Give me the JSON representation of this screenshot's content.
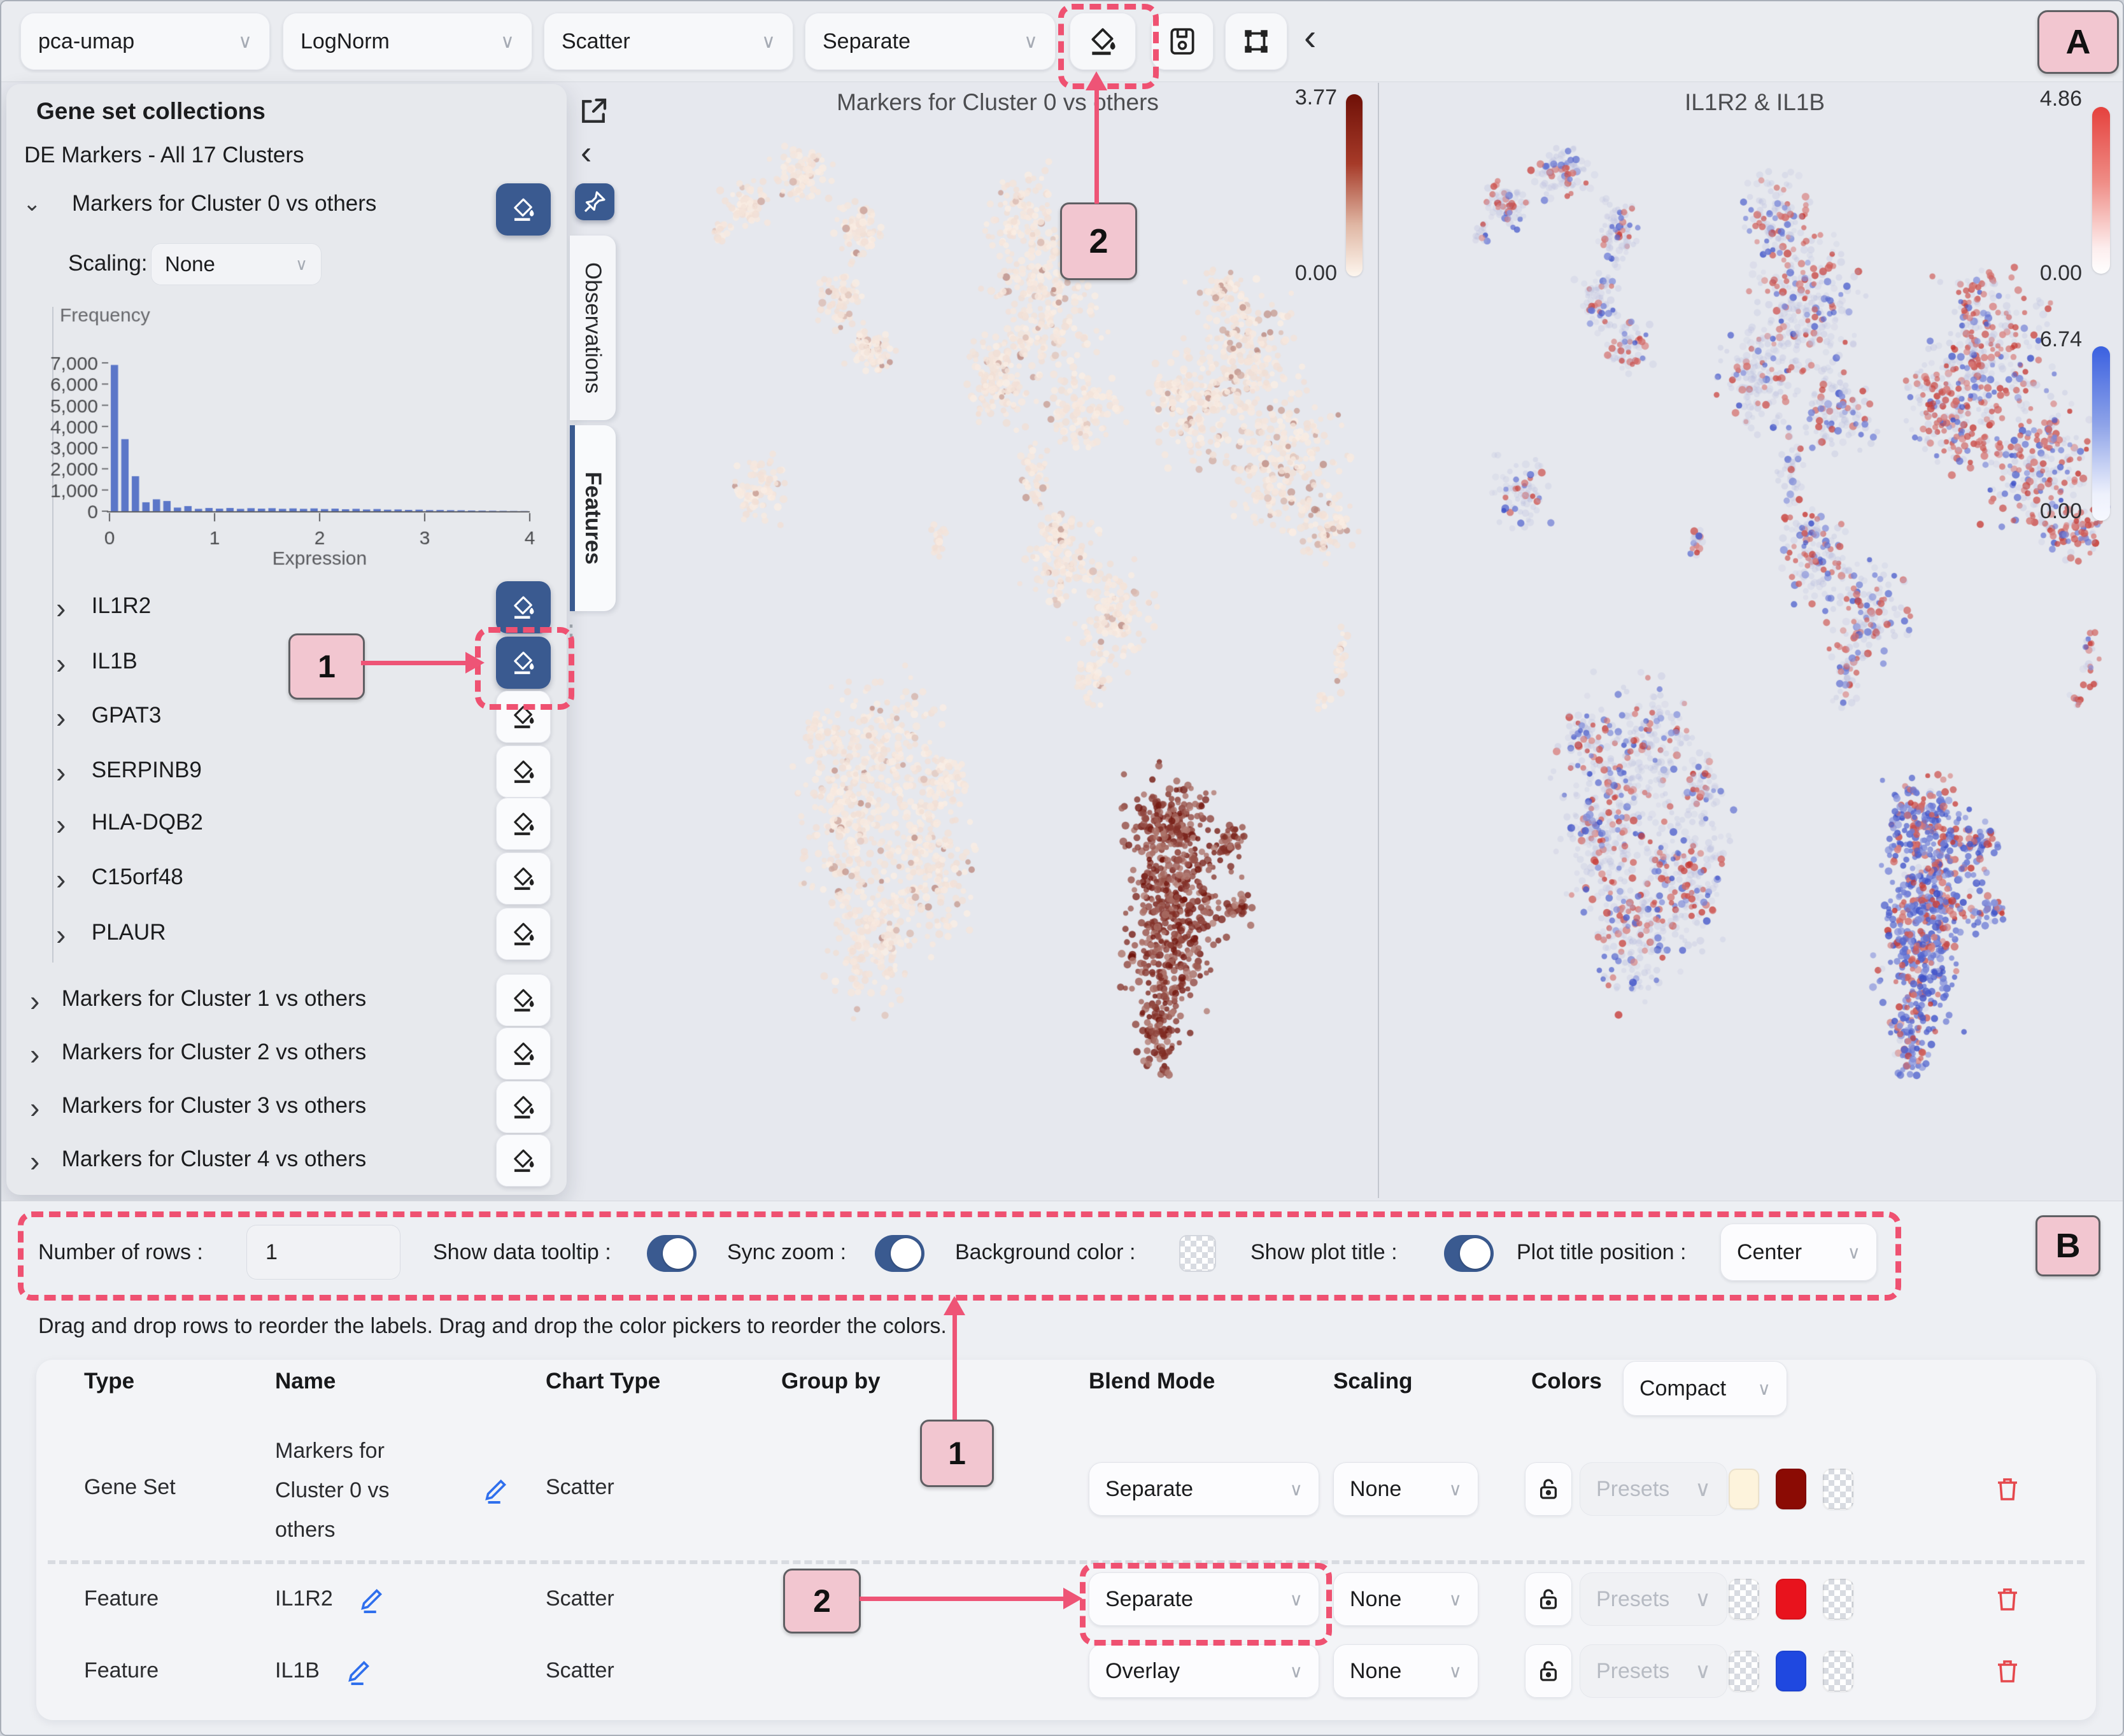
{
  "colors": {
    "accent_blue": "#3a5a90",
    "annotation_pink": "#ef5171",
    "annotation_badge_bg": "#f2c6d0",
    "histogram_bar": "#5b76c8",
    "heat_max": "#7a130a",
    "feature_red": "#e8131d",
    "feature_blue": "#1f48e0",
    "gene_set_low": "#fdf3dc",
    "gene_set_high": "#8b0b04",
    "trash_red": "#e5484d",
    "edit_blue": "#2f6fed"
  },
  "icons": {
    "paint": "paint-bucket",
    "save": "save-floppy",
    "frame": "transform-frame",
    "collapse": "chevron-left",
    "external": "external-link",
    "pin": "pin",
    "lock": "lock",
    "trash": "trash",
    "edit": "pencil",
    "chevron_down": "∨",
    "chevron_right": "›",
    "collapse_glyph": "‹",
    "drag_dots": "⋮"
  },
  "annotations": {
    "a": "A",
    "b": "B",
    "one": "1",
    "two": "2"
  },
  "toolbar": {
    "embedding": "pca-umap",
    "layer": "LogNorm",
    "chart_type": "Scatter",
    "blend_mode": "Separate"
  },
  "gene_panel": {
    "title": "Gene set collections",
    "collection": "DE Markers - All 17 Clusters",
    "expanded_set": "Markers for Cluster 0 vs others",
    "scaling_label": "Scaling:",
    "scaling_value": "None",
    "genes": [
      {
        "name": "IL1R2",
        "active": true
      },
      {
        "name": "IL1B",
        "active": true
      },
      {
        "name": "GPAT3",
        "active": false
      },
      {
        "name": "SERPINB9",
        "active": false
      },
      {
        "name": "HLA-DQB2",
        "active": false
      },
      {
        "name": "C15orf48",
        "active": false
      },
      {
        "name": "PLAUR",
        "active": false
      }
    ],
    "other_sets": [
      "Markers for Cluster 1 vs others",
      "Markers for Cluster 2 vs others",
      "Markers for Cluster 3 vs others",
      "Markers for Cluster 4 vs others"
    ]
  },
  "tabs": {
    "observations": "Observations",
    "features": "Features"
  },
  "controls": {
    "number_of_rows_label": "Number of rows :",
    "number_of_rows_value": "1",
    "show_data_tooltip_label": "Show data tooltip :",
    "sync_zoom_label": "Sync zoom :",
    "background_color_label": "Background color :",
    "show_plot_title_label": "Show plot title :",
    "plot_title_position_label": "Plot title position :",
    "plot_title_position_value": "Center",
    "show_data_tooltip_on": true,
    "sync_zoom_on": true,
    "show_plot_title_on": true
  },
  "hint": "Drag and drop rows to reorder the labels. Drag and drop the color pickers to reorder the colors.",
  "table": {
    "headers": [
      "Type",
      "Name",
      "Chart Type",
      "Group by",
      "Blend Mode",
      "Scaling",
      "Colors"
    ],
    "colors_mode": "Compact",
    "presets_label": "Presets",
    "rows": [
      {
        "type": "Gene Set",
        "name": "Markers for Cluster 0 vs others",
        "chart": "Scatter",
        "group_by": "",
        "blend": "Separate",
        "scaling": "None",
        "swatches": [
          "#fdf3dc",
          "#8b0b04",
          "transparent"
        ]
      },
      {
        "type": "Feature",
        "name": "IL1R2",
        "chart": "Scatter",
        "group_by": "",
        "blend": "Separate",
        "scaling": "None",
        "swatches": [
          "transparent",
          "#e8131d",
          "transparent"
        ]
      },
      {
        "type": "Feature",
        "name": "IL1B",
        "chart": "Scatter",
        "group_by": "",
        "blend": "Overlay",
        "scaling": "None",
        "swatches": [
          "transparent",
          "#1f48e0",
          "transparent"
        ]
      }
    ]
  },
  "chart_data": [
    {
      "type": "bar",
      "title": "Frequency",
      "xlabel": "Expression",
      "ylabel": "Frequency",
      "x_ticks": [
        0,
        1,
        2,
        3,
        4
      ],
      "y_ticks": [
        "0",
        "1,000",
        "2,000",
        "3,000",
        "4,000",
        "5,000",
        "6,000",
        "7,000"
      ],
      "xlim": [
        0,
        4
      ],
      "ylim": [
        0,
        7000
      ],
      "bar_color": "#5b76c8",
      "values": [
        6900,
        3400,
        1650,
        420,
        560,
        480,
        170,
        240,
        110,
        150,
        120,
        150,
        110,
        140,
        120,
        140,
        110,
        130,
        110,
        130,
        100,
        120,
        90,
        110,
        80,
        100,
        70,
        80,
        60,
        70,
        50,
        55,
        45,
        40,
        30,
        25,
        20,
        15,
        10,
        8
      ]
    },
    {
      "type": "scatter",
      "title": "Markers for Cluster 0 vs others",
      "scheme": "heat",
      "legend_position": "right",
      "colorbars": [
        {
          "max": "3.77",
          "min": "0.00",
          "color": "red"
        }
      ]
    },
    {
      "type": "scatter",
      "title": "IL1R2 & IL1B",
      "scheme": "dual",
      "legend_position": "right",
      "colorbars": [
        {
          "max": "4.86",
          "min": "0.00",
          "color": "red"
        },
        {
          "max": "6.74",
          "min": "0.00",
          "color": "blue"
        }
      ]
    }
  ],
  "umap_clusters": [
    {
      "name": "crescent",
      "heat": 0.05,
      "red": 0.18,
      "blue": 0.13,
      "blobs": [
        [
          0.165,
          0.075,
          0.02,
          0.015,
          70
        ],
        [
          0.24,
          0.045,
          0.026,
          0.016,
          90
        ],
        [
          0.315,
          0.1,
          0.018,
          0.022,
          80
        ],
        [
          0.29,
          0.165,
          0.02,
          0.02,
          70
        ],
        [
          0.33,
          0.21,
          0.022,
          0.016,
          70
        ],
        [
          0.13,
          0.1,
          0.008,
          0.008,
          16
        ]
      ]
    },
    {
      "name": "top-middle",
      "heat": 0.04,
      "red": 0.16,
      "blue": 0.12,
      "blobs": [
        [
          0.53,
          0.09,
          0.03,
          0.035,
          120
        ],
        [
          0.565,
          0.175,
          0.048,
          0.055,
          280
        ],
        [
          0.5,
          0.24,
          0.03,
          0.03,
          130
        ],
        [
          0.615,
          0.27,
          0.032,
          0.026,
          110
        ],
        [
          0.55,
          0.33,
          0.013,
          0.028,
          45
        ]
      ]
    },
    {
      "name": "right-lobe",
      "heat": 0.1,
      "red": 0.42,
      "blue": 0.16,
      "blobs": [
        [
          0.82,
          0.21,
          0.05,
          0.045,
          220
        ],
        [
          0.77,
          0.27,
          0.042,
          0.038,
          150
        ],
        [
          0.88,
          0.32,
          0.05,
          0.048,
          240
        ],
        [
          0.935,
          0.38,
          0.028,
          0.02,
          70
        ],
        [
          0.73,
          0.25,
          0.02,
          0.016,
          40
        ],
        [
          0.8,
          0.155,
          0.02,
          0.015,
          40
        ]
      ]
    },
    {
      "name": "small-left",
      "heat": 0.04,
      "red": 0.15,
      "blue": 0.12,
      "blobs": [
        [
          0.185,
          0.345,
          0.026,
          0.022,
          80
        ]
      ]
    },
    {
      "name": "tiny-mid",
      "heat": 0.05,
      "red": 0.2,
      "blue": 0.2,
      "blobs": [
        [
          0.42,
          0.39,
          0.008,
          0.012,
          18
        ]
      ]
    },
    {
      "name": "middle",
      "heat": 0.05,
      "red": 0.28,
      "blue": 0.14,
      "blobs": [
        [
          0.585,
          0.41,
          0.034,
          0.026,
          120
        ],
        [
          0.655,
          0.46,
          0.036,
          0.032,
          140
        ],
        [
          0.625,
          0.515,
          0.013,
          0.024,
          45
        ],
        [
          0.575,
          0.375,
          0.015,
          0.011,
          28
        ]
      ]
    },
    {
      "name": "bottom-left",
      "heat": 0.04,
      "red": 0.2,
      "blue": 0.16,
      "blobs": [
        [
          0.345,
          0.585,
          0.05,
          0.042,
          220
        ],
        [
          0.3,
          0.66,
          0.046,
          0.052,
          240
        ],
        [
          0.405,
          0.7,
          0.042,
          0.052,
          220
        ],
        [
          0.335,
          0.765,
          0.04,
          0.042,
          170
        ],
        [
          0.43,
          0.62,
          0.02,
          0.02,
          60
        ],
        [
          0.27,
          0.575,
          0.02,
          0.02,
          50
        ]
      ]
    },
    {
      "name": "bottom-right-hot",
      "heat": 0.85,
      "red": 0.3,
      "blue": 0.66,
      "blobs": [
        [
          0.73,
          0.655,
          0.036,
          0.03,
          170
        ],
        [
          0.745,
          0.715,
          0.048,
          0.048,
          300
        ],
        [
          0.725,
          0.78,
          0.036,
          0.046,
          220
        ],
        [
          0.715,
          0.855,
          0.018,
          0.032,
          90
        ],
        [
          0.81,
          0.675,
          0.016,
          0.011,
          35
        ],
        [
          0.825,
          0.74,
          0.013,
          0.009,
          22
        ]
      ]
    },
    {
      "name": "right-specks",
      "heat": 0.06,
      "red": 0.35,
      "blue": 0.3,
      "blobs": [
        [
          0.955,
          0.5,
          0.008,
          0.02,
          22
        ],
        [
          0.935,
          0.54,
          0.006,
          0.006,
          10
        ]
      ]
    }
  ]
}
